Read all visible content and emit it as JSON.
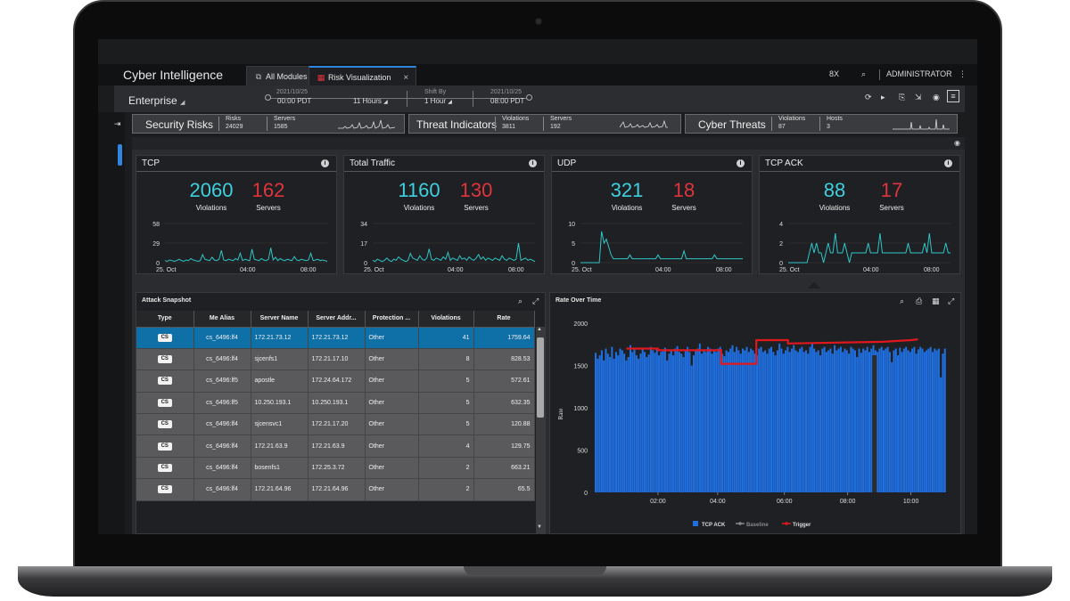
{
  "app": {
    "title": "Cyber Intelligence",
    "tabs": [
      {
        "label": "All Modules",
        "active": false
      },
      {
        "label": "Risk Visualization",
        "active": true,
        "close": "×"
      }
    ],
    "user": "ADMINISTRATOR",
    "right_icons": [
      "bx-icon",
      "search-icon",
      "kebab-icon"
    ]
  },
  "toolbar": {
    "scope": "Enterprise",
    "start_date": "2021/10/25",
    "start_time": "00:00 PDT",
    "duration": "11 Hours",
    "shift_label": "Shift By",
    "shift_value": "1 Hour",
    "end_date": "2021/10/25",
    "end_time": "08:00 PDT"
  },
  "summary": [
    {
      "title": "Security Risks",
      "k1": "Risks",
      "v1": "24029",
      "k2": "Servers",
      "v2": "1585"
    },
    {
      "title": "Threat Indicators",
      "k1": "Violations",
      "v1": "3811",
      "k2": "Servers",
      "v2": "192"
    },
    {
      "title": "Cyber Threats",
      "k1": "Violations",
      "v1": "87",
      "k2": "Hosts",
      "v2": "3"
    }
  ],
  "kpis": [
    {
      "title": "TCP",
      "violations": "2060",
      "servers": "162",
      "violations_label": "Violations",
      "servers_label": "Servers",
      "yticks": [
        "58",
        "29",
        "0"
      ],
      "ymax": 58,
      "xticks": [
        "25. Oct",
        "04:00",
        "08:00"
      ],
      "series": [
        3,
        2,
        4,
        3,
        2,
        3,
        5,
        3,
        2,
        4,
        3,
        6,
        4,
        3,
        2,
        3,
        12,
        5,
        4,
        3,
        8,
        4,
        3,
        5,
        18,
        4,
        3,
        5,
        4,
        3,
        6,
        4,
        14,
        3,
        5,
        4,
        3,
        20,
        5,
        4,
        3,
        6,
        4,
        3,
        5,
        22,
        4,
        8,
        3,
        6,
        4,
        3,
        5,
        4,
        3,
        9,
        4,
        3,
        5,
        4,
        3,
        4,
        14,
        3,
        4,
        5,
        3,
        4,
        3,
        2
      ]
    },
    {
      "title": "Total Traffic",
      "violations": "1160",
      "servers": "130",
      "violations_label": "Violations",
      "servers_label": "Servers",
      "yticks": [
        "34",
        "17",
        "0"
      ],
      "ymax": 34,
      "xticks": [
        "25. Oct",
        "04:00",
        "08:00"
      ],
      "series": [
        2,
        1,
        3,
        2,
        1,
        2,
        4,
        2,
        1,
        3,
        2,
        5,
        3,
        2,
        1,
        2,
        8,
        4,
        3,
        2,
        6,
        3,
        2,
        4,
        12,
        3,
        2,
        4,
        3,
        2,
        5,
        3,
        9,
        2,
        4,
        3,
        2,
        6,
        3,
        4,
        2,
        5,
        3,
        2,
        4,
        7,
        3,
        5,
        2,
        4,
        3,
        2,
        4,
        3,
        2,
        6,
        3,
        2,
        4,
        3,
        2,
        3,
        17,
        2,
        3,
        4,
        2,
        3,
        2,
        1
      ]
    },
    {
      "title": "UDP",
      "violations": "321",
      "servers": "18",
      "violations_label": "Violations",
      "servers_label": "Servers",
      "yticks": [
        "10",
        "5",
        "0"
      ],
      "ymax": 10,
      "xticks": [
        "25. Oct",
        "04:00",
        "08:00"
      ],
      "series": [
        0,
        0,
        0,
        0,
        0,
        0,
        0,
        0,
        0,
        8,
        5,
        6,
        4,
        2,
        1,
        1,
        1,
        1,
        1,
        1,
        1,
        2,
        1,
        1,
        1,
        1,
        1,
        1,
        1,
        1,
        1,
        1,
        1,
        2,
        1,
        1,
        1,
        1,
        1,
        1,
        1,
        1,
        1,
        1,
        3,
        1,
        1,
        1,
        1,
        1,
        1,
        1,
        1,
        1,
        1,
        1,
        1,
        2,
        1,
        1,
        1,
        1,
        1,
        1,
        1,
        1,
        1,
        1,
        1,
        1
      ]
    },
    {
      "title": "TCP ACK",
      "violations": "88",
      "servers": "17",
      "violations_label": "Violations",
      "servers_label": "Servers",
      "yticks": [
        "4",
        "2",
        "0"
      ],
      "ymax": 4,
      "xticks": [
        "25. Oct",
        "04:00",
        "08:00"
      ],
      "series": [
        0,
        0,
        0,
        0,
        0,
        0,
        0,
        0,
        0,
        1,
        2,
        1,
        2,
        1,
        1,
        0,
        1,
        2,
        1,
        1,
        3,
        1,
        1,
        1,
        2,
        1,
        0,
        1,
        1,
        1,
        1,
        1,
        1,
        1,
        2,
        1,
        1,
        1,
        1,
        3,
        1,
        1,
        1,
        1,
        1,
        1,
        1,
        1,
        1,
        1,
        1,
        2,
        1,
        1,
        1,
        1,
        1,
        1,
        2,
        1,
        3,
        1,
        1,
        1,
        1,
        1,
        1,
        2,
        1,
        1
      ]
    }
  ],
  "snapshot": {
    "title": "Attack Snapshot",
    "columns": [
      "Type",
      "Me Alias",
      "Server Name",
      "Server Addr...",
      "Protection ...",
      "Violations",
      "Rate"
    ],
    "rows": [
      {
        "type": "CS",
        "alias": "cs_6496:lf4",
        "server": "172.21.73.12",
        "addr": "172.21.73.12",
        "protection": "Other",
        "violations": "41",
        "rate": "1759.64"
      },
      {
        "type": "CS",
        "alias": "cs_6496:lf4",
        "server": "sjcenfs1",
        "addr": "172.21.17.10",
        "protection": "Other",
        "violations": "8",
        "rate": "828.53"
      },
      {
        "type": "CS",
        "alias": "cs_6496:lf5",
        "server": "apostle",
        "addr": "172.24.64.172",
        "protection": "Other",
        "violations": "5",
        "rate": "572.61"
      },
      {
        "type": "CS",
        "alias": "cs_6496:lf5",
        "server": "10.250.193.1",
        "addr": "10.250.193.1",
        "protection": "Other",
        "violations": "5",
        "rate": "632.35"
      },
      {
        "type": "CS",
        "alias": "cs_6496:lf4",
        "server": "sjcensvc1",
        "addr": "172.21.17.20",
        "protection": "Other",
        "violations": "5",
        "rate": "120.88"
      },
      {
        "type": "CS",
        "alias": "cs_6496:lf4",
        "server": "172.21.63.9",
        "addr": "172.21.63.9",
        "protection": "Other",
        "violations": "4",
        "rate": "129.75"
      },
      {
        "type": "CS",
        "alias": "cs_6496:lf4",
        "server": "bosenfs1",
        "addr": "172.25.3.72",
        "protection": "Other",
        "violations": "2",
        "rate": "663.21"
      },
      {
        "type": "CS",
        "alias": "cs_6496:lf4",
        "server": "172.21.64.96",
        "addr": "172.21.64.96",
        "protection": "Other",
        "violations": "2",
        "rate": "65.5"
      }
    ]
  },
  "rate_over_time": {
    "title": "Rate Over Time",
    "chart_data": {
      "type": "bar",
      "title": "Rate Over Time",
      "ylabel": "Rate",
      "ylim": [
        0,
        2000
      ],
      "yticks": [
        "2000",
        "1500",
        "1000",
        "500",
        "0"
      ],
      "xticks": [
        "02:00",
        "04:00",
        "06:00",
        "08:00",
        "10:00"
      ],
      "legend": [
        "TCP ACK",
        "Baseline",
        "Trigger"
      ],
      "legend_position": "bottom",
      "colors": {
        "bars": "#1f6fe0",
        "baseline": "#888888",
        "trigger": "#e0181e"
      },
      "bars": [
        1650,
        1580,
        1620,
        1680,
        1560,
        1700,
        1640,
        1600,
        1720,
        1580,
        1660,
        1620,
        1700,
        1680,
        1640,
        1560,
        1600,
        1740,
        1660,
        1690,
        1620,
        1580,
        1640,
        1700,
        1660,
        1600,
        1630,
        1720,
        1680,
        1650,
        1700,
        1620,
        1660,
        1690,
        1710,
        1560,
        1640,
        1680,
        1620,
        1700,
        1730,
        1660,
        1640,
        1600,
        1680,
        1720,
        1660,
        1500,
        1620,
        1680,
        1700,
        1760,
        1640,
        1680,
        1660,
        1720,
        1700,
        1640,
        1680,
        1660,
        1700,
        1720,
        1640,
        1610,
        1680,
        1660,
        1700,
        1740,
        1660,
        1720,
        1680,
        1640,
        1700,
        1680,
        1720,
        1660,
        1700,
        1680,
        1640,
        1620,
        1700,
        1720,
        1660,
        1680,
        1640,
        1700,
        1720,
        1660,
        1620,
        1680,
        1760,
        1700,
        1640,
        1680,
        1720,
        1660,
        1700,
        1740,
        1680,
        1660,
        1700,
        1720,
        1660,
        1680,
        1640,
        1720,
        1760,
        1700,
        1660,
        1680,
        1620,
        1700,
        1720,
        1660,
        1680,
        1700,
        1640,
        1740,
        1680,
        1700,
        1720,
        1660,
        1700,
        1680,
        1640,
        1720,
        1700,
        1680,
        1600,
        1700,
        1650,
        1700,
        1680,
        1720,
        1660,
        1700,
        1740,
        1680,
        1660,
        1700,
        1720,
        1680,
        1700,
        1720,
        1660,
        1540,
        1680,
        1700,
        1620,
        1710,
        1660,
        1700,
        1720,
        1680,
        1660,
        1700,
        1720,
        1640,
        1690,
        1720,
        1700,
        1660,
        1680,
        1700,
        1720,
        1660,
        1700,
        1680,
        1700,
        1360,
        1640,
        1700
      ],
      "trigger": [
        [
          0.09,
          1700
        ],
        [
          0.18,
          1700
        ],
        [
          0.18,
          1680
        ],
        [
          0.36,
          1680
        ],
        [
          0.36,
          1520
        ],
        [
          0.46,
          1520
        ],
        [
          0.46,
          1800
        ],
        [
          0.55,
          1800
        ],
        [
          0.55,
          1760
        ],
        [
          0.82,
          1780
        ],
        [
          0.9,
          1800
        ],
        [
          0.92,
          1810
        ]
      ]
    }
  }
}
